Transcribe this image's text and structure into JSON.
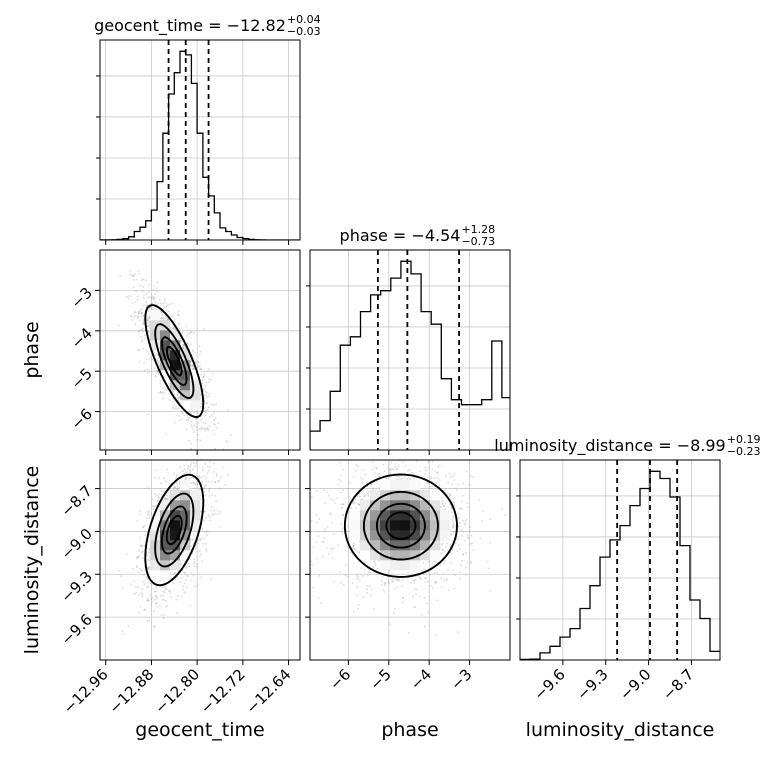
{
  "chart_data": {
    "type": "corner",
    "parameters": [
      "geocent_time",
      "phase",
      "luminosity_distance"
    ],
    "titles": [
      {
        "name": "geocent_time",
        "eq": " = ",
        "median": "−12.82",
        "upper": "+0.04",
        "lower": "−0.03"
      },
      {
        "name": "phase",
        "eq": " = ",
        "median": "−4.54",
        "upper": "+1.28",
        "lower": "−0.73"
      },
      {
        "name": "luminosity_distance",
        "eq": " = ",
        "median": "−8.99",
        "upper": "+0.19",
        "lower": "−0.23"
      }
    ],
    "ranges": {
      "geocent_time": [
        -12.97,
        -12.62
      ],
      "phase": [
        -6.95,
        -2.0
      ],
      "luminosity_distance": [
        -9.9,
        -8.5
      ]
    },
    "ticks": {
      "geocent_time": {
        "values": [
          -12.96,
          -12.88,
          -12.8,
          -12.72,
          -12.64
        ],
        "labels": [
          "−12.96",
          "−12.88",
          "−12.80",
          "−12.72",
          "−12.64"
        ]
      },
      "phase": {
        "values": [
          -6,
          -5,
          -4,
          -3
        ],
        "labels": [
          "−6",
          "−5",
          "−4",
          "−3"
        ]
      },
      "luminosity_distance": {
        "values": [
          -9.6,
          -9.3,
          -9.0,
          -8.7
        ],
        "labels": [
          "−9.6",
          "−9.3",
          "−9.0",
          "−8.7"
        ]
      }
    },
    "quantiles": {
      "geocent_time": [
        -12.85,
        -12.82,
        -12.78
      ],
      "phase": [
        -5.27,
        -4.54,
        -3.26
      ],
      "luminosity_distance": [
        -9.22,
        -8.99,
        -8.8
      ]
    },
    "histograms": {
      "geocent_time": {
        "edges": [
          -12.97,
          -12.96,
          -12.95,
          -12.94,
          -12.93,
          -12.92,
          -12.91,
          -12.9,
          -12.89,
          -12.88,
          -12.87,
          -12.86,
          -12.85,
          -12.84,
          -12.83,
          -12.82,
          -12.81,
          -12.8,
          -12.79,
          -12.78,
          -12.77,
          -12.76,
          -12.75,
          -12.74,
          -12.73,
          -12.72,
          -12.71,
          -12.7,
          -12.69,
          -12.68,
          -12.67,
          -12.66,
          -12.65,
          -12.64,
          -12.63,
          -12.62
        ],
        "counts": [
          1,
          2,
          3,
          8,
          18,
          45,
          120,
          180,
          270,
          420,
          820,
          1500,
          2050,
          2350,
          2650,
          2600,
          2200,
          1500,
          880,
          620,
          380,
          170,
          120,
          70,
          35,
          20,
          8,
          3,
          1,
          0,
          0,
          0,
          0,
          0,
          0
        ]
      },
      "phase": {
        "edges": [
          -6.95,
          -6.7,
          -6.45,
          -6.2,
          -5.95,
          -5.7,
          -5.45,
          -5.2,
          -4.95,
          -4.7,
          -4.45,
          -4.2,
          -3.95,
          -3.7,
          -3.45,
          -3.2,
          -2.95,
          -2.7,
          -2.45,
          -2.2,
          -2.0
        ],
        "counts": [
          45,
          70,
          140,
          250,
          270,
          330,
          370,
          380,
          410,
          450,
          420,
          330,
          300,
          170,
          120,
          108,
          108,
          120,
          260,
          125
        ]
      },
      "luminosity_distance": {
        "edges": [
          -9.9,
          -9.83,
          -9.76,
          -9.69,
          -9.62,
          -9.55,
          -9.48,
          -9.41,
          -9.34,
          -9.27,
          -9.2,
          -9.13,
          -9.06,
          -8.99,
          -8.92,
          -8.85,
          -8.78,
          -8.71,
          -8.64,
          -8.57,
          -8.5
        ],
        "counts": [
          2,
          3,
          25,
          48,
          80,
          110,
          180,
          260,
          360,
          420,
          470,
          540,
          600,
          660,
          635,
          570,
          400,
          210,
          145,
          30
        ]
      }
    },
    "pairs": [
      {
        "x": "geocent_time",
        "y": "phase",
        "peak": [
          -12.84,
          -4.75
        ],
        "cov": [
          [
            0.0006,
            -0.0125
          ],
          [
            -0.0125,
            0.45
          ]
        ]
      },
      {
        "x": "geocent_time",
        "y": "luminosity_distance",
        "peak": [
          -12.84,
          -8.99
        ],
        "cov": [
          [
            0.0006,
            0.0023
          ],
          [
            0.0023,
            0.035
          ]
        ]
      },
      {
        "x": "phase",
        "y": "luminosity_distance",
        "peak": [
          -4.7,
          -8.96
        ],
        "cov": [
          [
            0.45,
            0.0
          ],
          [
            0.0,
            0.03
          ]
        ]
      }
    ],
    "contour_levels": [
      0.118,
      0.393,
      0.675,
      0.865
    ],
    "quantile_style": "dashed",
    "grid": true
  }
}
